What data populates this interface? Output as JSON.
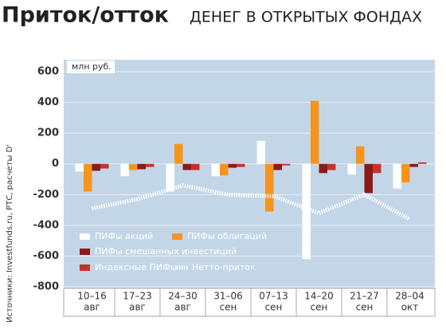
{
  "chart_data": {
    "type": "bar",
    "title": "Приток/отток",
    "subtitle": "ДЕНЕГ В ОТКРЫТЫХ ФОНДАХ",
    "unit_label": "млн руб.",
    "source": "Источники: Investfunds.ru, РТС, расчеты D'",
    "categories": [
      "10–16",
      "17–23",
      "24–30",
      "31–06",
      "07–13",
      "14–20",
      "21–27",
      "28–04"
    ],
    "category_months": [
      "авг",
      "авг",
      "авг",
      "сен",
      "сен",
      "сен",
      "сен",
      "окт"
    ],
    "ylim": [
      -800,
      600
    ],
    "yticks": [
      600,
      400,
      200,
      0,
      -200,
      -400,
      -600,
      -800
    ],
    "grid": true,
    "series": [
      {
        "name": "ПИФы акций",
        "color": "#ffffff",
        "values": [
          -50,
          -80,
          -180,
          -80,
          150,
          -620,
          -70,
          -160
        ]
      },
      {
        "name": "ПИФы облигаций",
        "color": "#f7941d",
        "values": [
          -180,
          -40,
          130,
          -75,
          -310,
          410,
          115,
          -120
        ]
      },
      {
        "name": "ПИФы смешанных инвестиций",
        "color": "#8b1a1a",
        "values": [
          -45,
          -35,
          -40,
          -25,
          -40,
          -60,
          -190,
          -20
        ]
      },
      {
        "name": "Индексные ПИФы",
        "color": "#c9302c",
        "values": [
          -30,
          -20,
          -40,
          -20,
          -10,
          -40,
          -60,
          10
        ]
      },
      {
        "name": "Нетто-приток",
        "color": "#ffffff",
        "kind": "line",
        "values": [
          -290,
          -230,
          -140,
          -200,
          -210,
          -320,
          -200,
          -360
        ]
      }
    ]
  }
}
